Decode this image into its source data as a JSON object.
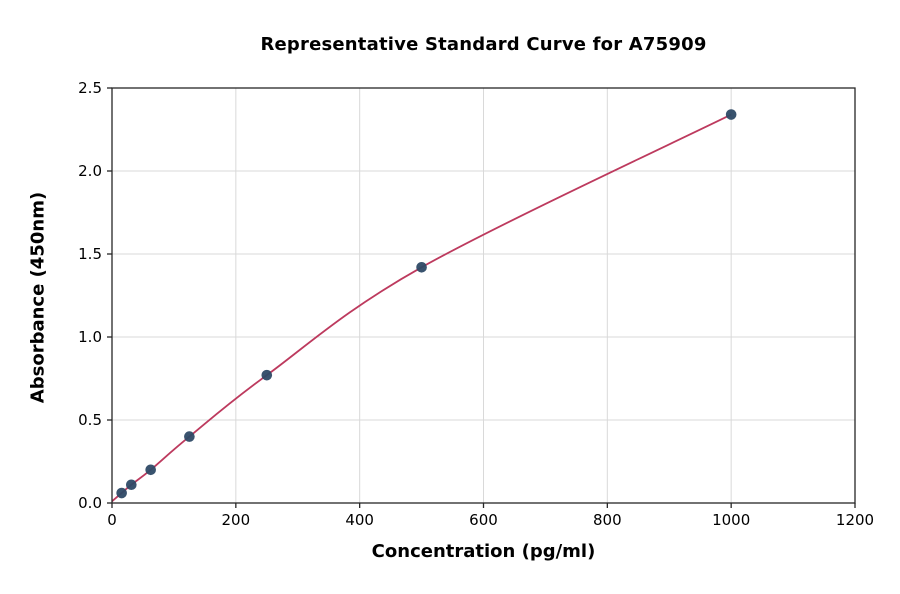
{
  "chart_data": {
    "type": "scatter",
    "title": "Representative Standard Curve for A75909",
    "xlabel": "Concentration (pg/ml)",
    "ylabel": "Absorbance (450nm)",
    "xlim": [
      0,
      1200
    ],
    "ylim": [
      0,
      2.5
    ],
    "x_ticks": [
      0,
      200,
      400,
      600,
      800,
      1000,
      1200
    ],
    "x_tick_labels": [
      "0",
      "200",
      "400",
      "600",
      "800",
      "1000",
      "1200"
    ],
    "y_ticks": [
      0,
      0.5,
      1.0,
      1.5,
      2.0,
      2.5
    ],
    "y_tick_labels": [
      "0.0",
      "0.5",
      "1.0",
      "1.5",
      "2.0",
      "2.5"
    ],
    "grid": true,
    "legend": "none",
    "points": [
      {
        "x": 15.6,
        "y": 0.06
      },
      {
        "x": 31.2,
        "y": 0.11
      },
      {
        "x": 62.5,
        "y": 0.2
      },
      {
        "x": 125,
        "y": 0.4
      },
      {
        "x": 250,
        "y": 0.77
      },
      {
        "x": 500,
        "y": 1.42
      },
      {
        "x": 1000,
        "y": 2.34
      }
    ],
    "curve_start": {
      "x": 0,
      "y": 0.01
    },
    "colors": {
      "curve": "#bd3a5e",
      "marker": "#2e4a66",
      "grid": "#d9d9d9",
      "spine": "#262626",
      "text": "#000000",
      "background": "#ffffff"
    }
  }
}
